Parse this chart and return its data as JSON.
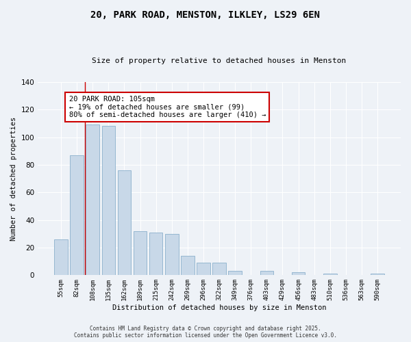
{
  "title": "20, PARK ROAD, MENSTON, ILKLEY, LS29 6EN",
  "subtitle": "Size of property relative to detached houses in Menston",
  "xlabel": "Distribution of detached houses by size in Menston",
  "ylabel": "Number of detached properties",
  "bar_color": "#c8d8e8",
  "bar_edge_color": "#8ab0cc",
  "categories": [
    "55sqm",
    "82sqm",
    "108sqm",
    "135sqm",
    "162sqm",
    "189sqm",
    "215sqm",
    "242sqm",
    "269sqm",
    "296sqm",
    "322sqm",
    "349sqm",
    "376sqm",
    "403sqm",
    "429sqm",
    "456sqm",
    "483sqm",
    "510sqm",
    "536sqm",
    "563sqm",
    "590sqm"
  ],
  "values": [
    26,
    87,
    109,
    108,
    76,
    32,
    31,
    30,
    14,
    9,
    9,
    3,
    0,
    3,
    0,
    2,
    0,
    1,
    0,
    0,
    1
  ],
  "ylim": [
    0,
    140
  ],
  "yticks": [
    0,
    20,
    40,
    60,
    80,
    100,
    120,
    140
  ],
  "vline_x_index": 1.5,
  "property_line_label": "20 PARK ROAD: 105sqm",
  "annotation_line1": "← 19% of detached houses are smaller (99)",
  "annotation_line2": "80% of semi-detached houses are larger (410) →",
  "annotation_box_color": "#ffffff",
  "annotation_box_edge_color": "#cc0000",
  "vline_color": "#cc0000",
  "footer_line1": "Contains HM Land Registry data © Crown copyright and database right 2025.",
  "footer_line2": "Contains public sector information licensed under the Open Government Licence v3.0.",
  "background_color": "#eef2f7"
}
